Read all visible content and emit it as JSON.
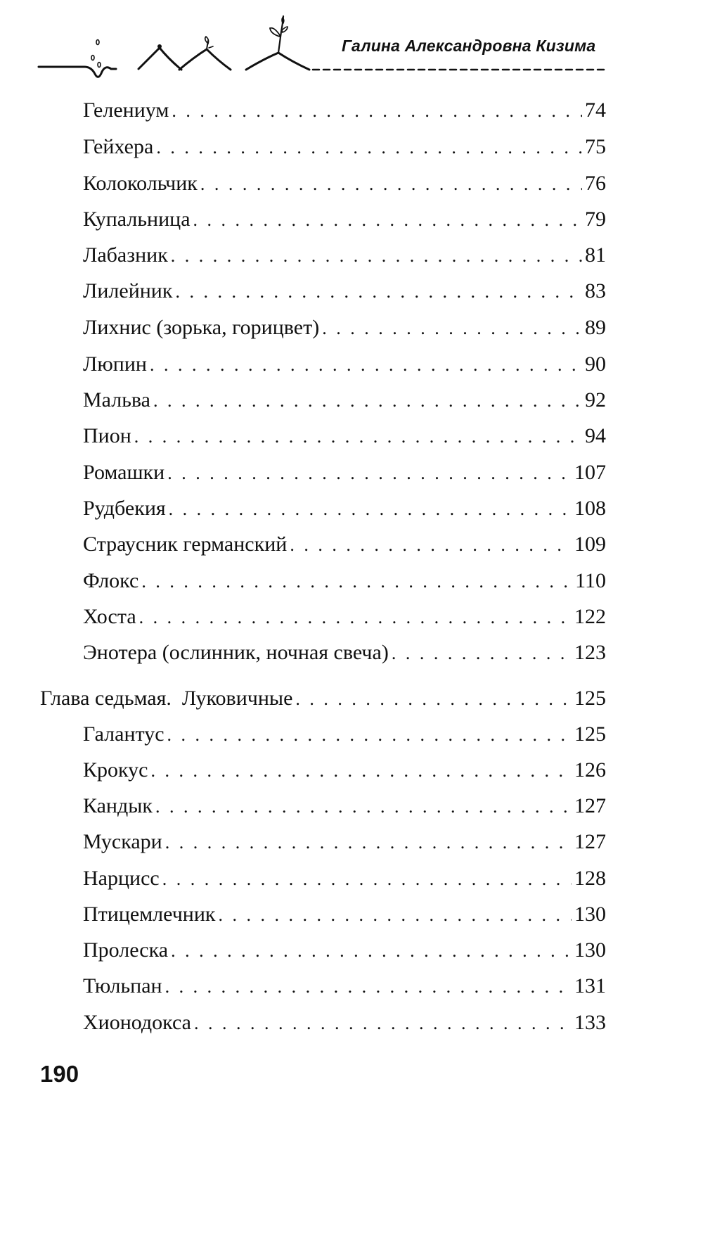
{
  "header": {
    "author": "Галина Александровна Кизима",
    "ornament": "seed-sprouting-icon"
  },
  "entries": [
    {
      "title": "Гелениум",
      "page": "74"
    },
    {
      "title": "Гейхера",
      "page": "75"
    },
    {
      "title": "Колокольчик",
      "page": "76"
    },
    {
      "title": "Купальница",
      "page": "79"
    },
    {
      "title": "Лабазник",
      "page": "81"
    },
    {
      "title": "Лилейник",
      "page": "83"
    },
    {
      "title": "Лихнис (зорька, горицвет)",
      "page": "89"
    },
    {
      "title": "Люпин",
      "page": "90"
    },
    {
      "title": "Мальва",
      "page": "92"
    },
    {
      "title": "Пион",
      "page": "94"
    },
    {
      "title": "Ромашки",
      "page": "107"
    },
    {
      "title": "Рудбекия",
      "page": "108"
    },
    {
      "title": "Страусник германский",
      "page": "109"
    },
    {
      "title": "Флокс",
      "page": "110"
    },
    {
      "title": "Хоста",
      "page": "122"
    },
    {
      "title": "Энотера (ослинник, ночная свеча)",
      "page": "123"
    }
  ],
  "chapter": {
    "title": "Глава седьмая.  Луковичные",
    "page": "125"
  },
  "chapter_entries": [
    {
      "title": "Галантус",
      "page": "125"
    },
    {
      "title": "Крокус",
      "page": "126"
    },
    {
      "title": "Кандык",
      "page": "127"
    },
    {
      "title": "Мускари",
      "page": "127"
    },
    {
      "title": "Нарцисс",
      "page": "128"
    },
    {
      "title": "Птицемлечник",
      "page": "130"
    },
    {
      "title": "Пролеска",
      "page": "130"
    },
    {
      "title": "Тюльпан",
      "page": "131"
    },
    {
      "title": "Хионодокса",
      "page": "133"
    }
  ],
  "folio": "190"
}
